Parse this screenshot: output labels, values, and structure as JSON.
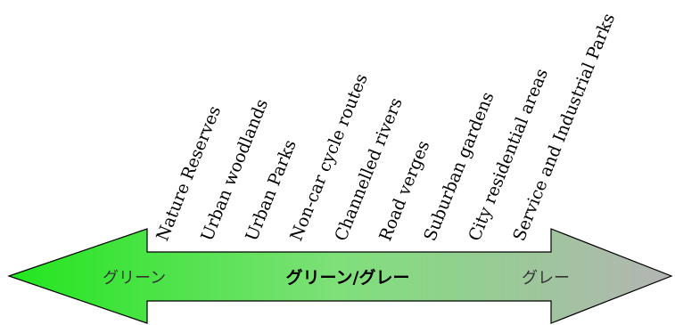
{
  "arrow": {
    "left_label": "グリーン",
    "center_label": "グリーン/グレー",
    "right_label": "グレー",
    "colors": {
      "green": "#22e61e",
      "mid": "#7ee67a",
      "grey": "#b4b4b4",
      "outline": "#000000"
    }
  },
  "categories": [
    "Nature Reserves",
    "Urban woodlands",
    "Urban Parks",
    "Non-car cycle routes",
    "Channelled rivers",
    "Road verges",
    "Suburban gardens",
    "City residential areas",
    "Service and Industrial Parks"
  ]
}
